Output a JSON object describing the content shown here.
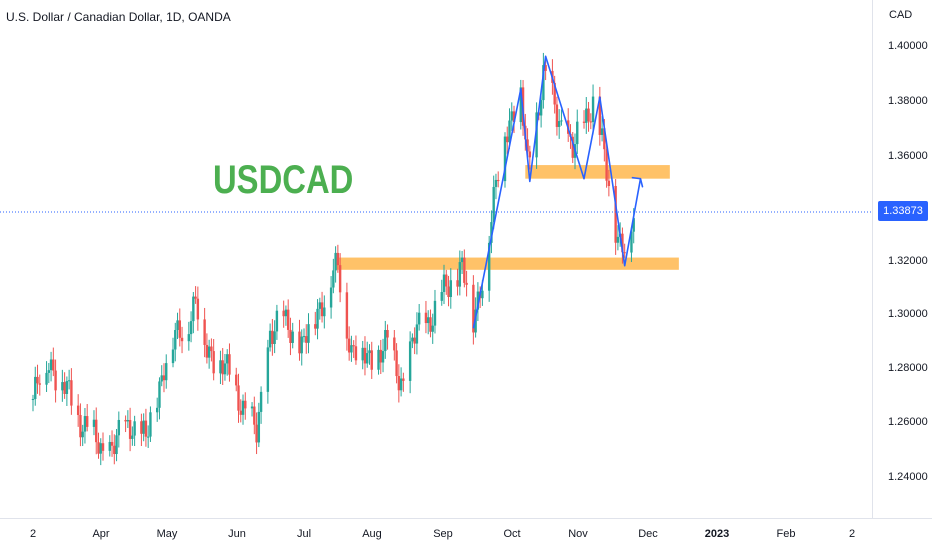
{
  "header": {
    "title": "U.S. Dollar / Canadian Dollar, 1D, OANDA",
    "currency_label": "CAD"
  },
  "annotation": {
    "watermark_text": "USDCAD"
  },
  "price_axis": {
    "ticks": [
      "1.40000",
      "1.38000",
      "1.36000",
      "1.32000",
      "1.30000",
      "1.28000",
      "1.26000",
      "1.24000"
    ],
    "current_price": "1.33873"
  },
  "time_axis": {
    "ticks": [
      "2",
      "Apr",
      "May",
      "Jun",
      "Jul",
      "Aug",
      "Sep",
      "Oct",
      "Nov",
      "Dec",
      "2023",
      "Feb",
      "2"
    ]
  },
  "colors": {
    "up": "#26a69a",
    "down": "#ef5350",
    "zone": "#ffb74d",
    "pattern_line": "#2962ff",
    "watermark": "#4caf50",
    "price_line": "#2962ff"
  },
  "chart_data": {
    "type": "candlestick",
    "title": "U.S. Dollar / Canadian Dollar, 1D, OANDA",
    "ylabel": "CAD",
    "ylim": [
      1.23,
      1.41
    ],
    "current_price": 1.33873,
    "price_path": [
      [
        "2022-03-01",
        1.27
      ],
      [
        "2022-03-08",
        1.285
      ],
      [
        "2022-03-14",
        1.275
      ],
      [
        "2022-03-22",
        1.263
      ],
      [
        "2022-04-01",
        1.25
      ],
      [
        "2022-04-08",
        1.255
      ],
      [
        "2022-04-14",
        1.262
      ],
      [
        "2022-04-20",
        1.254
      ],
      [
        "2022-04-28",
        1.283
      ],
      [
        "2022-05-04",
        1.293
      ],
      [
        "2022-05-12",
        1.305
      ],
      [
        "2022-05-16",
        1.29
      ],
      [
        "2022-05-24",
        1.282
      ],
      [
        "2022-06-01",
        1.27
      ],
      [
        "2022-06-08",
        1.256
      ],
      [
        "2022-06-14",
        1.295
      ],
      [
        "2022-06-22",
        1.298
      ],
      [
        "2022-06-28",
        1.288
      ],
      [
        "2022-07-06",
        1.305
      ],
      [
        "2022-07-14",
        1.318
      ],
      [
        "2022-07-20",
        1.288
      ],
      [
        "2022-07-28",
        1.285
      ],
      [
        "2022-08-05",
        1.289
      ],
      [
        "2022-08-12",
        1.276
      ],
      [
        "2022-08-18",
        1.295
      ],
      [
        "2022-08-26",
        1.302
      ],
      [
        "2022-09-02",
        1.314
      ],
      [
        "2022-09-07",
        1.319
      ],
      [
        "2022-09-12",
        1.298
      ],
      [
        "2022-09-20",
        1.335
      ],
      [
        "2022-09-26",
        1.37
      ],
      [
        "2022-10-03",
        1.38
      ],
      [
        "2022-10-06",
        1.356
      ],
      [
        "2022-10-13",
        1.388
      ],
      [
        "2022-10-18",
        1.378
      ],
      [
        "2022-10-26",
        1.36
      ],
      [
        "2022-11-01",
        1.375
      ],
      [
        "2022-11-04",
        1.38
      ],
      [
        "2022-11-09",
        1.358
      ],
      [
        "2022-11-15",
        1.33
      ],
      [
        "2022-11-18",
        1.325
      ],
      [
        "2022-11-23",
        1.339
      ]
    ],
    "zones": [
      {
        "from": "2022-07-13",
        "to": "2022-12-12",
        "low": 1.3175,
        "high": 1.322
      },
      {
        "from": "2022-10-05",
        "to": "2022-12-08",
        "low": 1.351,
        "high": 1.356
      }
    ],
    "pattern_line": [
      [
        "2022-09-12",
        1.296
      ],
      [
        "2022-10-03",
        1.384
      ],
      [
        "2022-10-07",
        1.35
      ],
      [
        "2022-10-14",
        1.396
      ],
      [
        "2022-10-31",
        1.351
      ],
      [
        "2022-11-07",
        1.381
      ],
      [
        "2022-11-18",
        1.319
      ],
      [
        "2022-11-25",
        1.351
      ]
    ]
  }
}
